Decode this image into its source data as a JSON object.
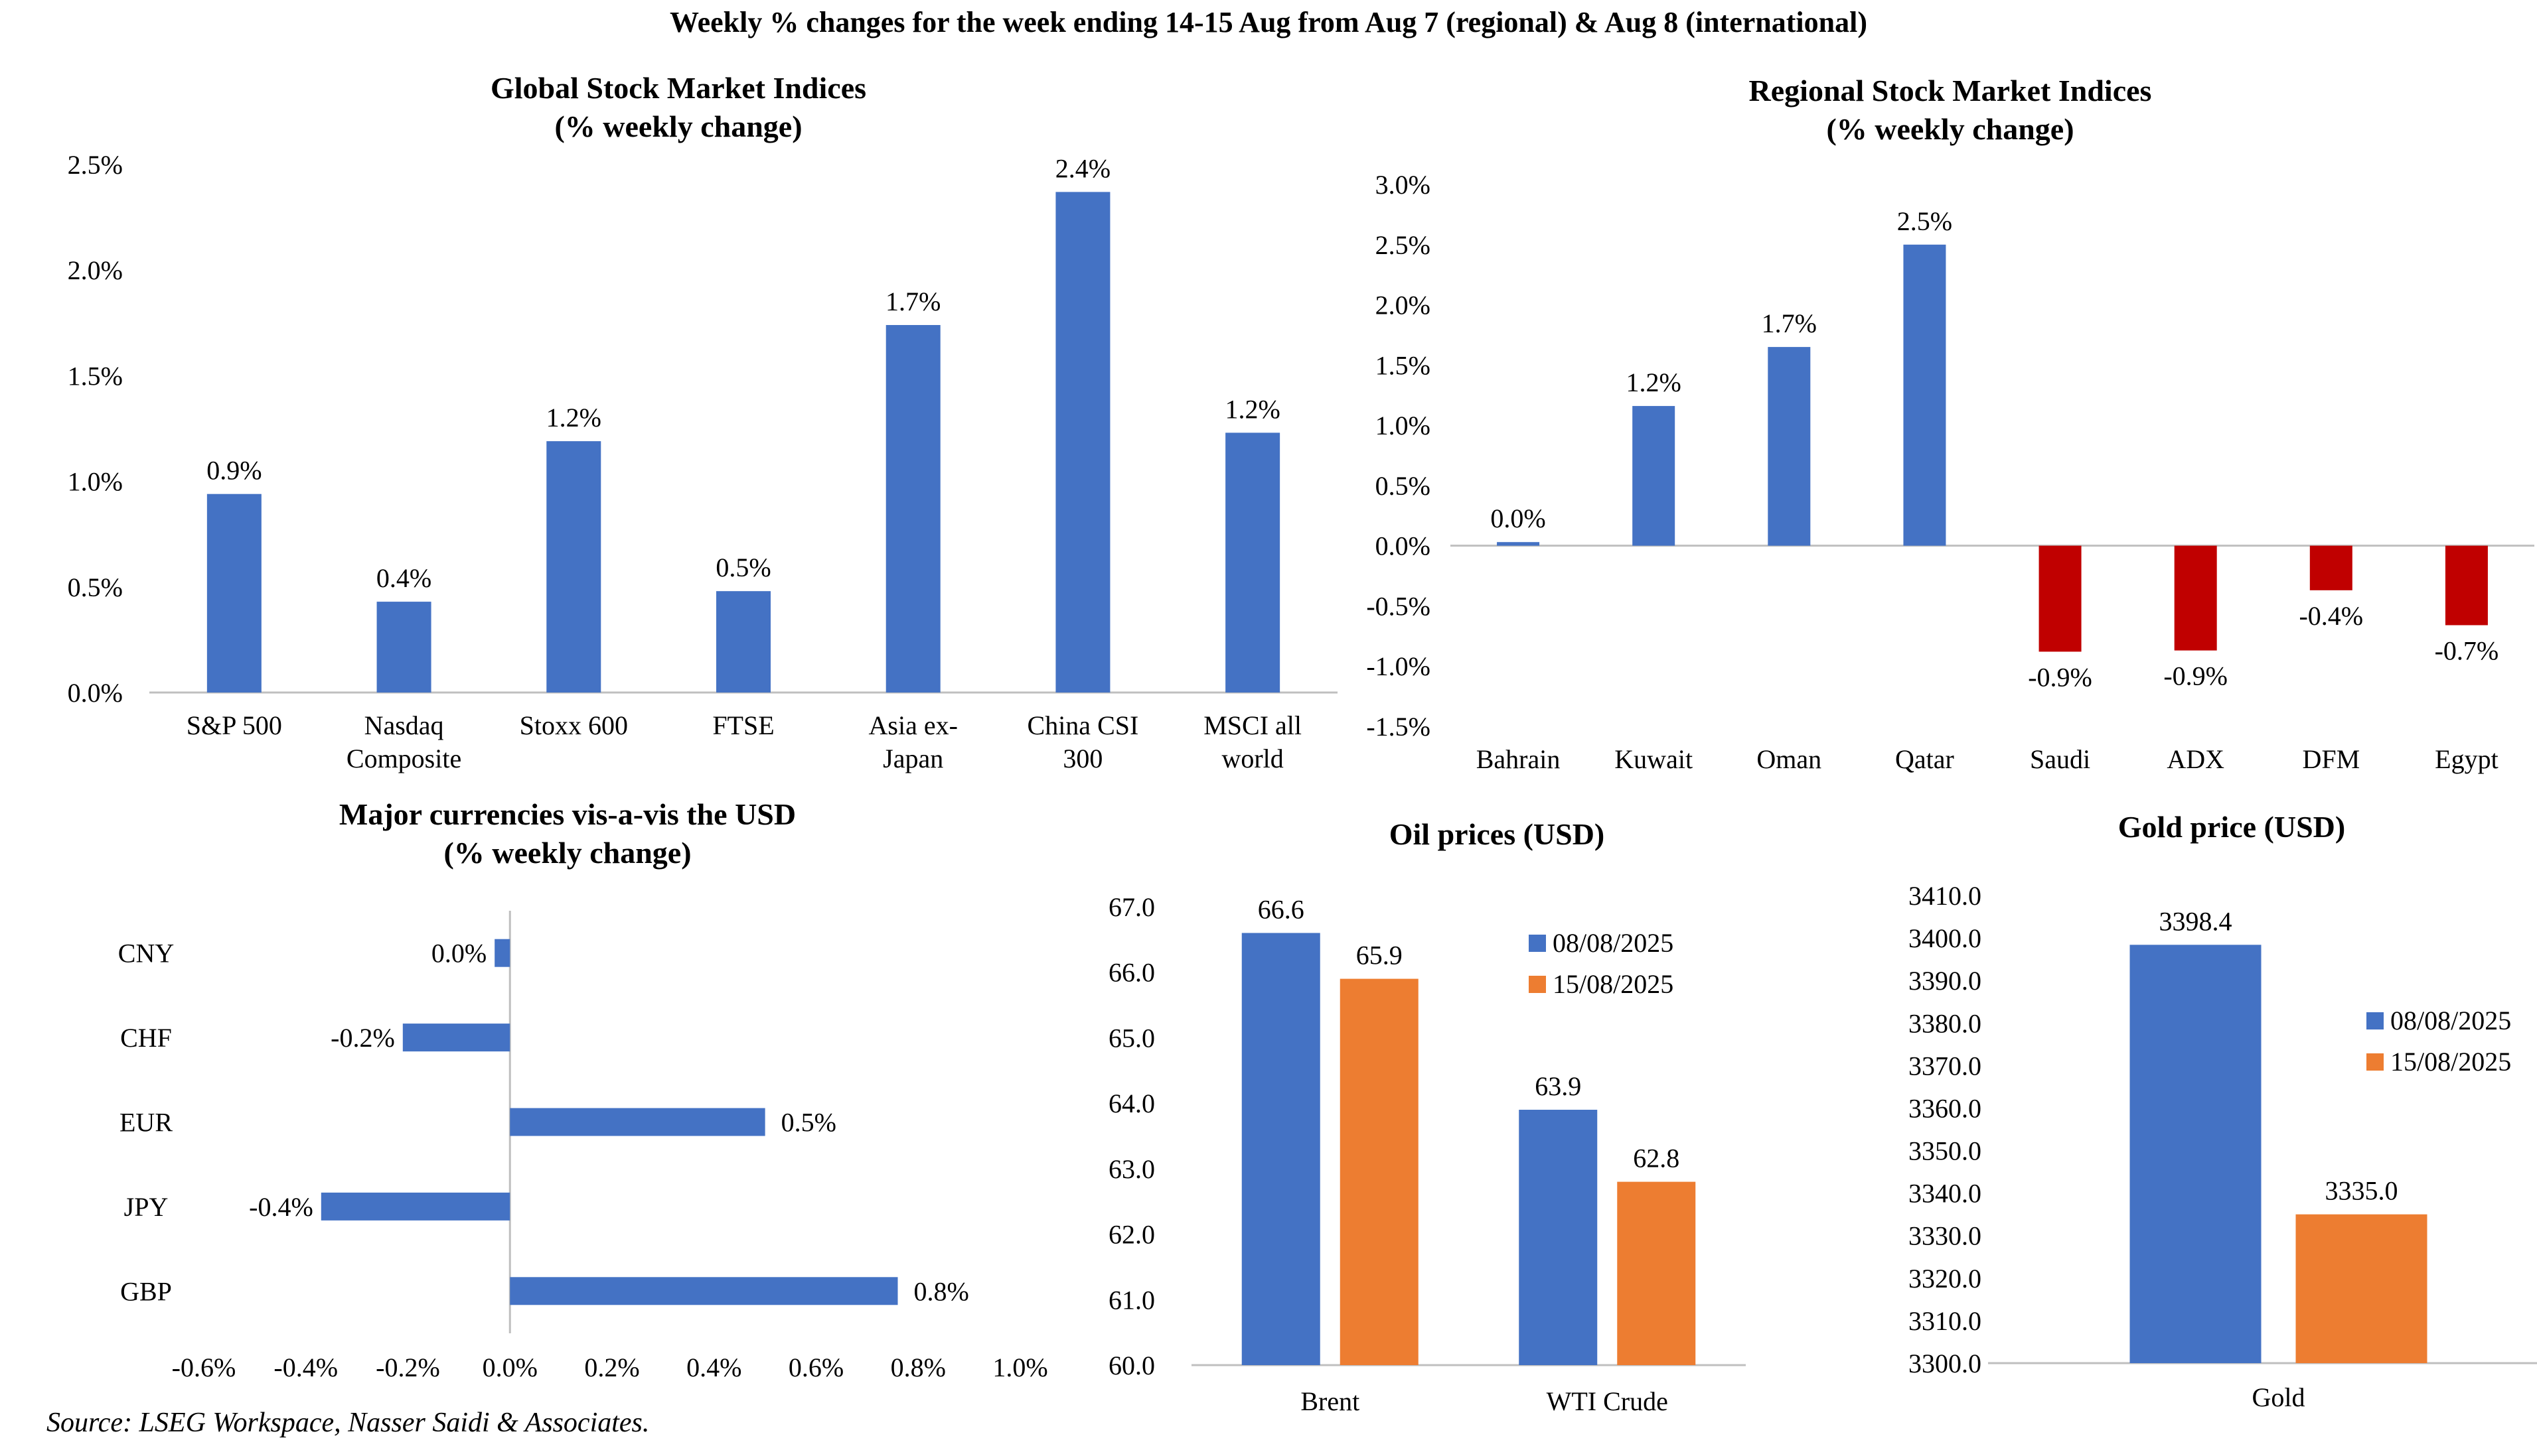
{
  "header": {
    "title": "Weekly % changes for the week ending 14-15 Aug from Aug 7 (regional) & Aug 8 (international)"
  },
  "footer": {
    "source": "Source: LSEG Workspace, Nasser Saidi & Associates."
  },
  "colors": {
    "blue": "#4472C4",
    "red": "#C00000",
    "orange": "#ED7D31",
    "axis": "#BFBFBF"
  },
  "chart_data": [
    {
      "id": "global",
      "type": "bar",
      "title": [
        "Global Stock Market Indices",
        "(% weekly change)"
      ],
      "categories": [
        [
          "S&P 500"
        ],
        [
          "Nasdaq",
          "Composite"
        ],
        [
          "Stoxx 600"
        ],
        [
          "FTSE"
        ],
        [
          "Asia ex-",
          "Japan"
        ],
        [
          "China CSI",
          "300"
        ],
        [
          "MSCI all",
          "world"
        ]
      ],
      "values": [
        0.94,
        0.43,
        1.19,
        0.48,
        1.74,
        2.37,
        1.23
      ],
      "data_labels": [
        "0.9%",
        "0.4%",
        "1.2%",
        "0.5%",
        "1.7%",
        "2.4%",
        "1.2%"
      ],
      "ylim": [
        0,
        2.5
      ],
      "ticks": [
        0,
        0.5,
        1.0,
        1.5,
        2.0,
        2.5
      ],
      "tick_labels": [
        "0.0%",
        "0.5%",
        "1.0%",
        "1.5%",
        "2.0%",
        "2.5%"
      ],
      "grid": false
    },
    {
      "id": "regional",
      "type": "bar",
      "title": [
        "Regional Stock Market Indices",
        "(% weekly change)"
      ],
      "categories": [
        [
          "Bahrain"
        ],
        [
          "Kuwait"
        ],
        [
          "Oman"
        ],
        [
          "Qatar"
        ],
        [
          "Saudi"
        ],
        [
          "ADX"
        ],
        [
          "DFM"
        ],
        [
          "Egypt"
        ]
      ],
      "values": [
        0.03,
        1.16,
        1.65,
        2.5,
        -0.88,
        -0.87,
        -0.37,
        -0.66
      ],
      "data_labels": [
        "0.0%",
        "1.2%",
        "1.7%",
        "2.5%",
        "-0.9%",
        "-0.9%",
        "-0.4%",
        "-0.7%"
      ],
      "ylim": [
        -1.5,
        3.0
      ],
      "ticks": [
        -1.5,
        -1.0,
        -0.5,
        0,
        0.5,
        1.0,
        1.5,
        2.0,
        2.5,
        3.0
      ],
      "tick_labels": [
        "-1.5%",
        "-1.0%",
        "-0.5%",
        "0.0%",
        "0.5%",
        "1.0%",
        "1.5%",
        "2.0%",
        "2.5%",
        "3.0%"
      ],
      "positive_color": "#4472C4",
      "negative_color": "#C00000",
      "grid": false
    },
    {
      "id": "currencies",
      "type": "bar",
      "orientation": "horizontal",
      "title": [
        "Major currencies vis-a-vis the USD",
        "(% weekly change)"
      ],
      "categories": [
        "CNY",
        "CHF",
        "EUR",
        "JPY",
        "GBP"
      ],
      "values": [
        -0.03,
        -0.21,
        0.5,
        -0.37,
        0.76
      ],
      "data_labels": [
        "0.0%",
        "-0.2%",
        "0.5%",
        "-0.4%",
        "0.8%"
      ],
      "xlim": [
        -0.6,
        1.0
      ],
      "ticks": [
        -0.6,
        -0.4,
        -0.2,
        0,
        0.2,
        0.4,
        0.6,
        0.8,
        1.0
      ],
      "tick_labels": [
        "-0.6%",
        "-0.4%",
        "-0.2%",
        "0.0%",
        "0.2%",
        "0.4%",
        "0.6%",
        "0.8%",
        "1.0%"
      ],
      "grid": false
    },
    {
      "id": "oil",
      "type": "bar",
      "title": [
        "Oil prices (USD)"
      ],
      "categories": [
        "Brent",
        "WTI Crude"
      ],
      "series": [
        {
          "name": "08/08/2025",
          "values": [
            66.6,
            63.9
          ],
          "data_labels": [
            "66.6",
            "63.9"
          ],
          "color": "#4472C4"
        },
        {
          "name": "15/08/2025",
          "values": [
            65.9,
            62.8
          ],
          "data_labels": [
            "65.9",
            "62.8"
          ],
          "color": "#ED7D31"
        }
      ],
      "ylim": [
        60,
        67
      ],
      "ticks": [
        60,
        61,
        62,
        63,
        64,
        65,
        66,
        67
      ],
      "tick_labels": [
        "60.0",
        "61.0",
        "62.0",
        "63.0",
        "64.0",
        "65.0",
        "66.0",
        "67.0"
      ],
      "legend": "top-right",
      "grid": false
    },
    {
      "id": "gold",
      "type": "bar",
      "title": [
        "Gold price (USD)"
      ],
      "categories": [
        "Gold"
      ],
      "series": [
        {
          "name": "08/08/2025",
          "values": [
            3398.4
          ],
          "data_labels": [
            "3398.4"
          ],
          "color": "#4472C4"
        },
        {
          "name": "15/08/2025",
          "values": [
            3335.0
          ],
          "data_labels": [
            "3335.0"
          ],
          "color": "#ED7D31"
        }
      ],
      "ylim": [
        3300,
        3410
      ],
      "ticks": [
        3300,
        3310,
        3320,
        3330,
        3340,
        3350,
        3360,
        3370,
        3380,
        3390,
        3400,
        3410
      ],
      "tick_labels": [
        "3300.0",
        "3310.0",
        "3320.0",
        "3330.0",
        "3340.0",
        "3350.0",
        "3360.0",
        "3370.0",
        "3380.0",
        "3390.0",
        "3400.0",
        "3410.0"
      ],
      "legend": "right",
      "grid": false
    }
  ]
}
